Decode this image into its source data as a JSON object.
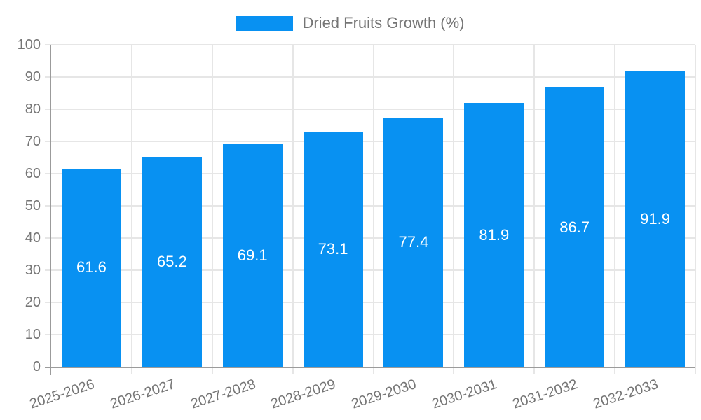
{
  "chart_data": {
    "type": "bar",
    "series_name": "Dried Fruits Growth (%)",
    "categories": [
      "2025-2026",
      "2026-2027",
      "2027-2028",
      "2028-2029",
      "2029-2030",
      "2030-2031",
      "2031-2032",
      "2032-2033"
    ],
    "values": [
      61.6,
      65.2,
      69.1,
      73.1,
      77.4,
      81.9,
      86.7,
      91.9
    ],
    "ylim": [
      0,
      100
    ],
    "ytick_step": 10,
    "yticks": [
      0,
      10,
      20,
      30,
      40,
      50,
      60,
      70,
      80,
      90,
      100
    ],
    "xlabel": "",
    "ylabel": "",
    "grid": true,
    "legend_position": "top-center",
    "value_labels": "inside-center",
    "colors": {
      "bar": "#0891f2",
      "bar_label": "#ffffff",
      "axis": "#9b9b9b",
      "grid": "#e6e6e6",
      "text": "#757575"
    }
  }
}
